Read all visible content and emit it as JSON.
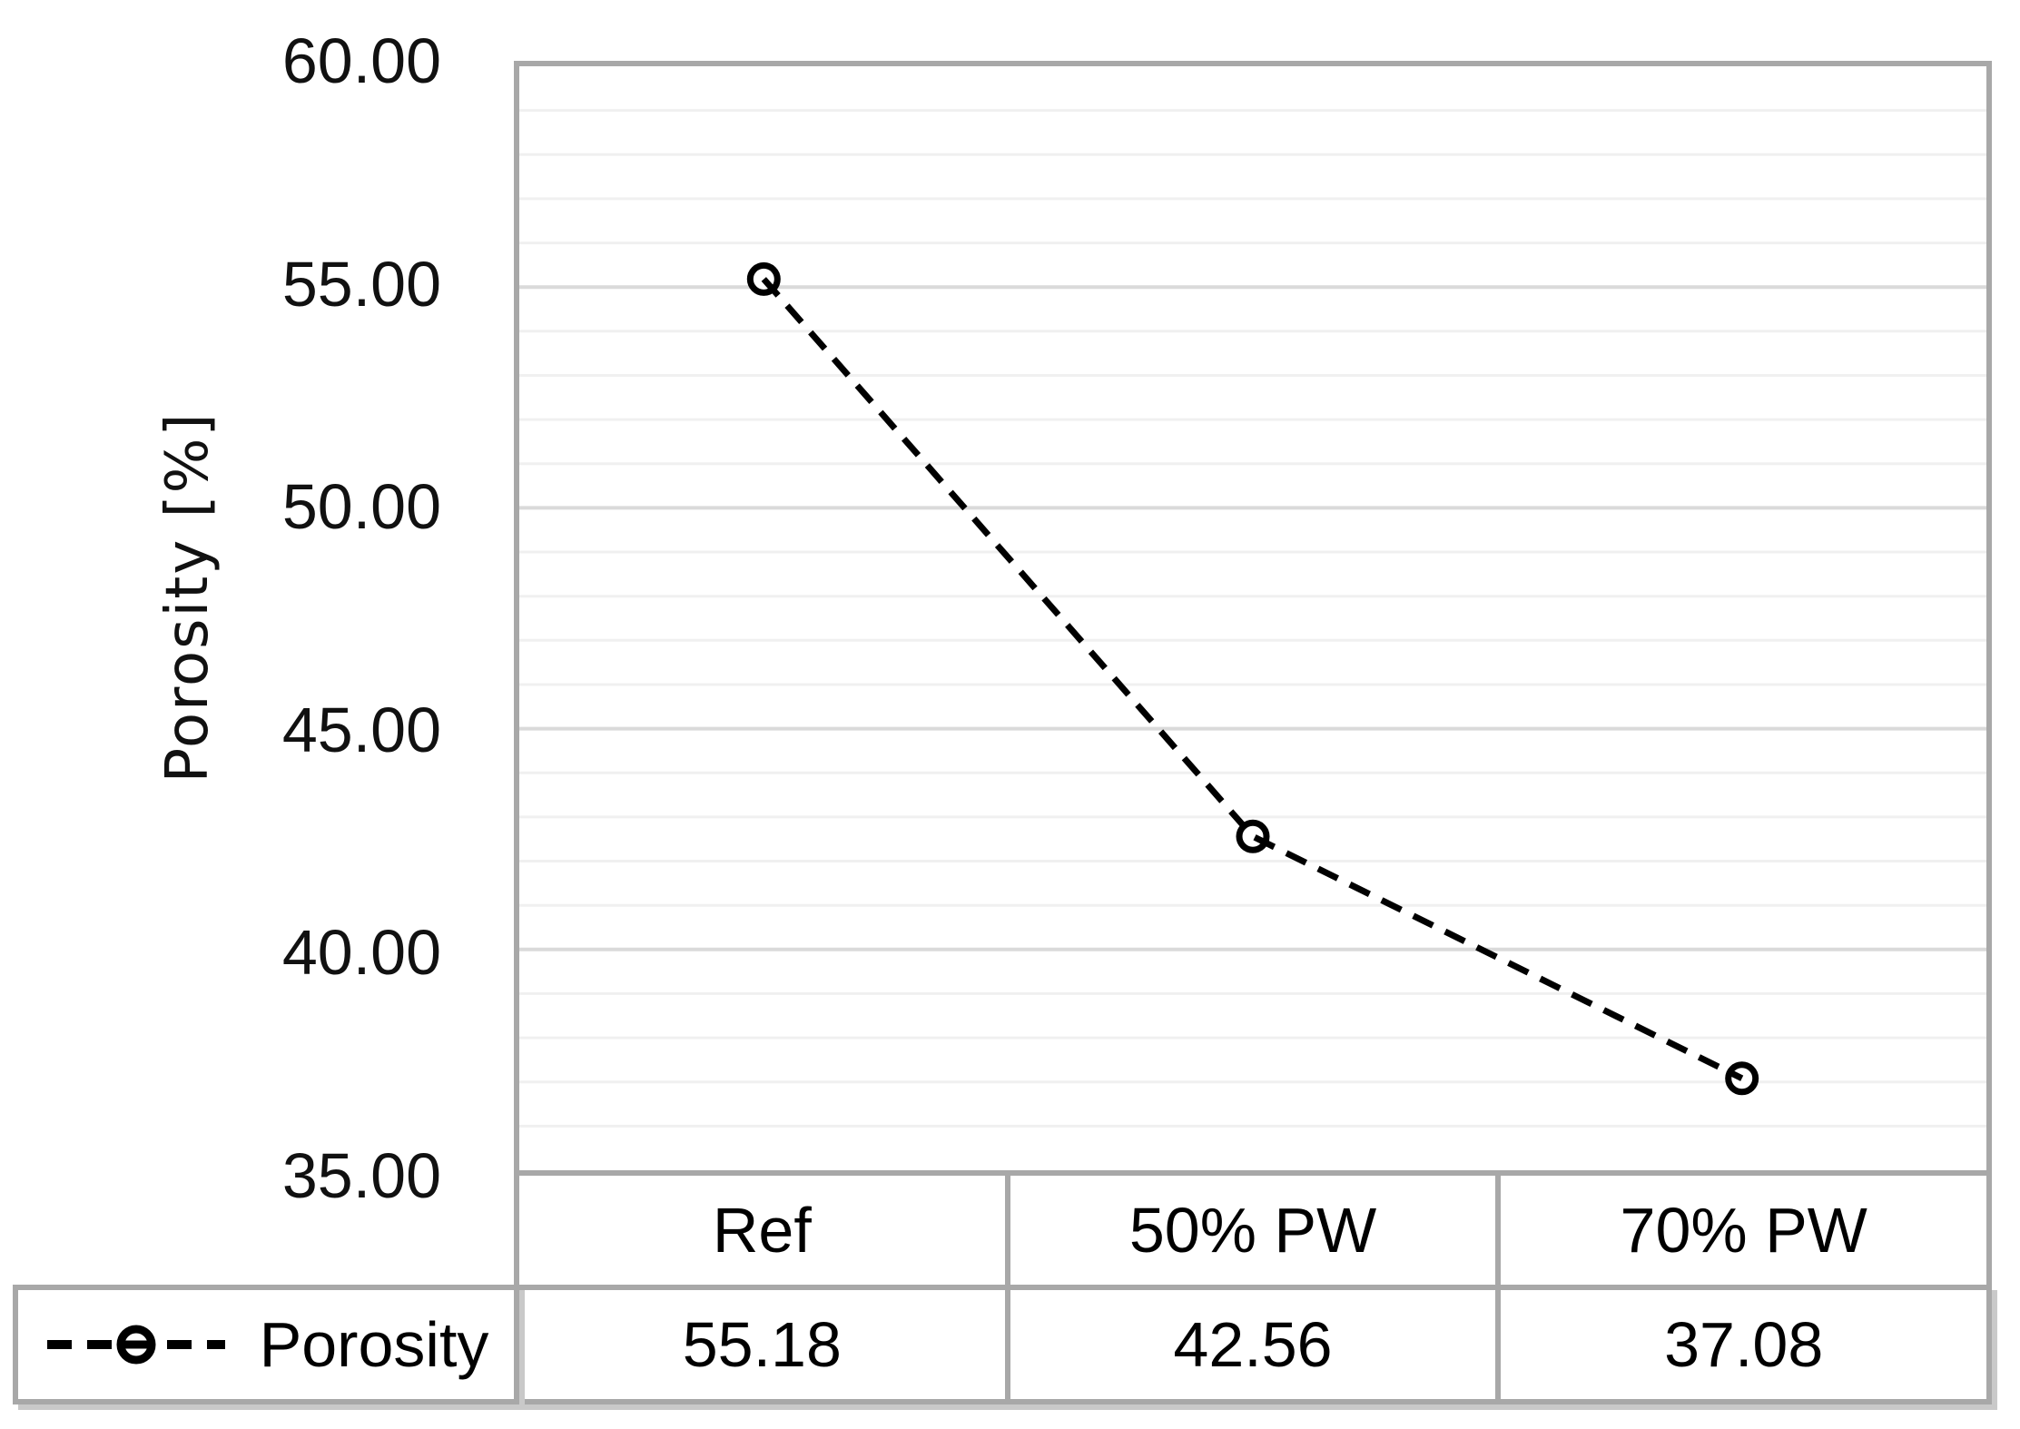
{
  "chart_data": {
    "type": "line",
    "title": "",
    "categories": [
      "Ref",
      "50% PW",
      "70% PW"
    ],
    "series": [
      {
        "name": "Porosity",
        "values": [
          55.18,
          42.56,
          37.08
        ],
        "color": "#000000",
        "line_style": "dashed",
        "marker": "open-circle"
      }
    ],
    "xlabel": "",
    "ylabel": "Porosity [%]",
    "ylim": [
      35,
      60
    ],
    "ytick_major_step": 5,
    "ytick_minor_step": 1,
    "ytick_labels": [
      "60.00",
      "55.00",
      "50.00",
      "45.00",
      "40.00",
      "35.00"
    ],
    "grid": "horizontal, minor every 1, major every 5",
    "legend_position": "data-table-left"
  },
  "table": {
    "legend_label": "Porosity",
    "headers": [
      "Ref",
      "50% PW",
      "70% PW"
    ],
    "values": [
      "55.18",
      "42.56",
      "37.08"
    ]
  },
  "colors": {
    "series": "#000000",
    "plot_border": "#a8a8a8",
    "grid_minor": "#f0f0f0",
    "grid_major": "#dadada",
    "shadow": "#c9c9c9",
    "text": "#000000",
    "background": "#ffffff"
  }
}
